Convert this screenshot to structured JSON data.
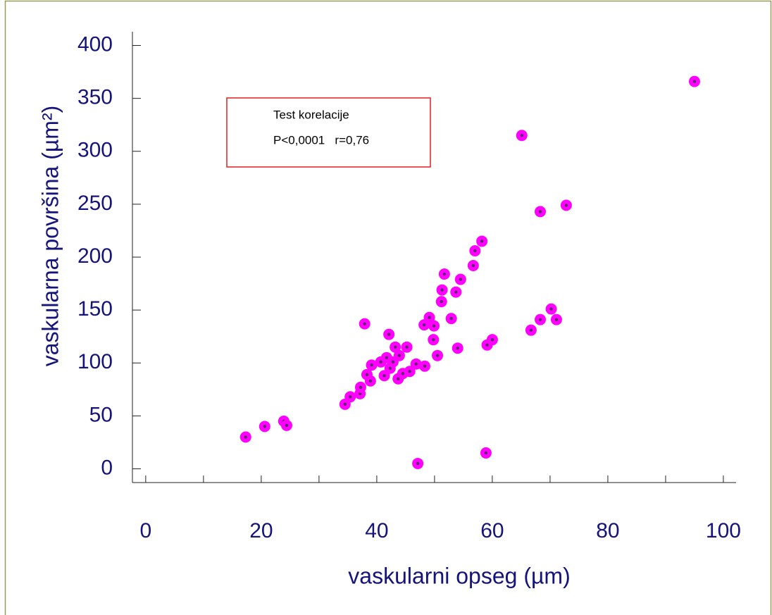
{
  "chart_data": {
    "type": "scatter",
    "xlabel": "vaskularni opseg (µm)",
    "ylabel": "vaskularna površina (µm²)",
    "annotation": [
      "Test korelacije",
      "P<0,0001   r=0,76"
    ],
    "color": "#ff00ff",
    "x": [
      17.3,
      20.6,
      23.9,
      24.4,
      34.5,
      35.4,
      37.1,
      37.2,
      37.9,
      38.3,
      38.9,
      39.1,
      40.7,
      41.3,
      41.7,
      42.1,
      42.3,
      42.8,
      43.2,
      43.7,
      43.9,
      44.5,
      45.2,
      45.7,
      46.8,
      47.1,
      48.2,
      48.3,
      49.1,
      49.8,
      49.9,
      50.5,
      51.2,
      51.3,
      51.7,
      52.9,
      53.7,
      54.0,
      54.5,
      56.7,
      57.0,
      58.2,
      58.9,
      59.1,
      60.0,
      65.1,
      66.7,
      68.3,
      68.3,
      70.2,
      71.1,
      72.8,
      95.0
    ],
    "y": [
      30,
      40,
      45,
      41,
      61,
      68,
      71,
      77,
      137,
      89,
      83,
      98,
      101,
      88,
      105,
      127,
      95,
      101,
      115,
      85,
      107,
      90,
      115,
      92,
      99,
      5,
      136,
      97,
      143,
      122,
      135,
      107,
      158,
      169,
      184,
      142,
      167,
      114,
      179,
      192,
      206,
      215,
      15,
      117,
      122,
      315,
      131,
      243,
      141,
      151,
      141,
      249,
      366
    ],
    "xlim": [
      -2.3,
      102.2
    ],
    "ylim": [
      -13,
      413
    ],
    "xticks": [
      0,
      20,
      40,
      60,
      80,
      100
    ],
    "xminorticks": [
      10,
      30,
      50,
      70,
      90
    ],
    "yticks": [
      0,
      50,
      100,
      150,
      200,
      250,
      300,
      350,
      400
    ]
  }
}
